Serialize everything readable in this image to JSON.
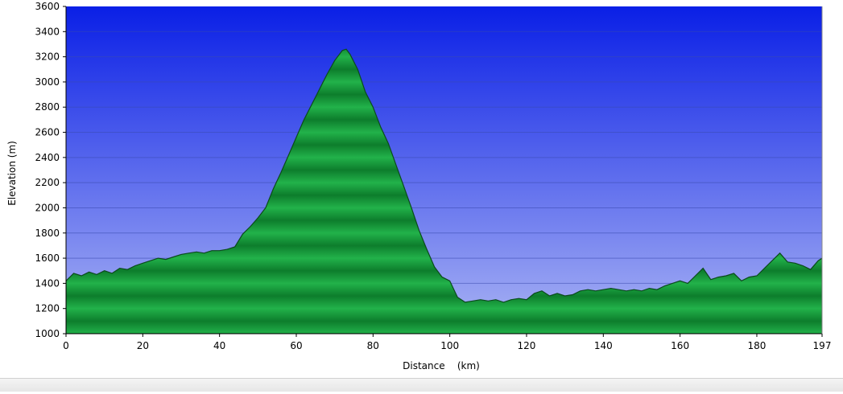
{
  "colors": {
    "sky_top": "#0a1fe6",
    "sky_bottom": "#aab4f4",
    "terrain_light": "#22b24a",
    "terrain_dark": "#0d7d2c",
    "terrain_outline": "#0b4a1c"
  },
  "chart_data": {
    "type": "area",
    "title": "",
    "xlabel": "Distance    (km)",
    "ylabel": "Elevation (m)",
    "xlim": [
      0,
      197
    ],
    "ylim": [
      1000,
      3600
    ],
    "grid": true,
    "x_ticks": [
      "0",
      "20",
      "40",
      "60",
      "80",
      "100",
      "120",
      "140",
      "160",
      "180",
      "197"
    ],
    "y_ticks": [
      "1000",
      "1200",
      "1400",
      "1600",
      "1800",
      "2000",
      "2200",
      "2400",
      "2600",
      "2800",
      "3000",
      "3200",
      "3400",
      "3600"
    ],
    "series": [
      {
        "name": "",
        "x": [
          0,
          2,
          4,
          6,
          8,
          10,
          12,
          14,
          16,
          18,
          20,
          22,
          24,
          26,
          28,
          30,
          32,
          34,
          36,
          38,
          40,
          42,
          44,
          46,
          48,
          50,
          52,
          54,
          56,
          58,
          60,
          62,
          64,
          66,
          68,
          70,
          72,
          73,
          74,
          76,
          78,
          80,
          82,
          84,
          86,
          88,
          90,
          92,
          94,
          96,
          98,
          100,
          102,
          104,
          106,
          108,
          110,
          112,
          114,
          116,
          118,
          120,
          122,
          124,
          126,
          128,
          130,
          132,
          134,
          136,
          138,
          140,
          142,
          144,
          146,
          148,
          150,
          152,
          154,
          156,
          158,
          160,
          162,
          164,
          166,
          168,
          170,
          172,
          174,
          176,
          178,
          180,
          182,
          184,
          186,
          188,
          190,
          192,
          194,
          196,
          197
        ],
        "y": [
          1420,
          1480,
          1460,
          1490,
          1470,
          1500,
          1480,
          1520,
          1510,
          1540,
          1560,
          1580,
          1600,
          1590,
          1610,
          1630,
          1640,
          1650,
          1640,
          1660,
          1660,
          1670,
          1690,
          1790,
          1850,
          1920,
          2000,
          2150,
          2280,
          2420,
          2560,
          2700,
          2820,
          2940,
          3060,
          3170,
          3250,
          3260,
          3220,
          3100,
          2920,
          2800,
          2640,
          2510,
          2340,
          2170,
          2000,
          1820,
          1670,
          1530,
          1450,
          1420,
          1290,
          1250,
          1260,
          1270,
          1260,
          1270,
          1250,
          1270,
          1280,
          1270,
          1320,
          1340,
          1300,
          1320,
          1300,
          1310,
          1340,
          1350,
          1340,
          1350,
          1360,
          1350,
          1340,
          1350,
          1340,
          1360,
          1350,
          1380,
          1400,
          1420,
          1400,
          1460,
          1520,
          1430,
          1450,
          1460,
          1480,
          1420,
          1450,
          1460,
          1520,
          1580,
          1640,
          1570,
          1560,
          1540,
          1510,
          1580,
          1600
        ]
      }
    ]
  }
}
